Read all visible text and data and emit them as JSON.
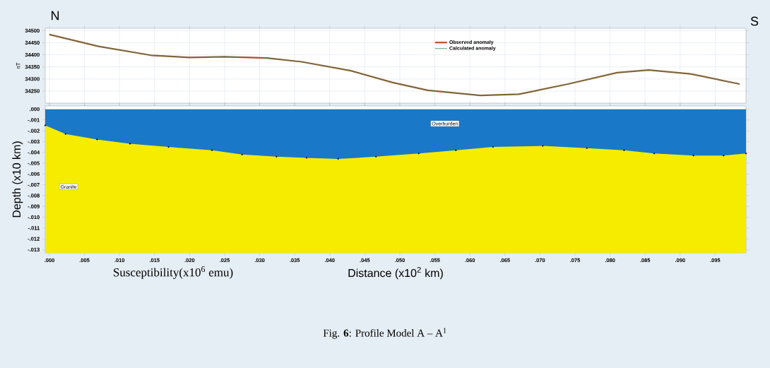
{
  "chart_data": [
    {
      "type": "line",
      "ylabel": "nT",
      "xlim": [
        -0.0006,
        0.0994
      ],
      "ylim": [
        34200,
        34510
      ],
      "xticks": [
        0,
        0.005,
        0.01,
        0.015,
        0.02,
        0.025,
        0.03,
        0.035,
        0.04,
        0.045,
        0.05,
        0.055,
        0.06,
        0.065,
        0.07,
        0.075,
        0.08,
        0.085,
        0.09,
        0.095
      ],
      "yticks": [
        34250,
        34300,
        34350,
        34400,
        34450,
        34500
      ],
      "tick_labels": "y",
      "grid": true,
      "legend": "top",
      "x": [
        0,
        0.007,
        0.0145,
        0.02,
        0.025,
        0.031,
        0.036,
        0.043,
        0.049,
        0.054,
        0.0615,
        0.067,
        0.074,
        0.081,
        0.0855,
        0.0915,
        0.0985
      ],
      "series": [
        {
          "name": "Observed anomaly",
          "color": "#b5502a",
          "values": [
            34484,
            34435,
            34398,
            34389,
            34392,
            34387,
            34371,
            34334,
            34285,
            34253,
            34232,
            34237,
            34279,
            34326,
            34337,
            34321,
            34279
          ]
        },
        {
          "name": "Calculated anomaly",
          "color": "#2e8b57",
          "values": [
            34484,
            34435,
            34398,
            34389,
            34392,
            34387,
            34371,
            34334,
            34285,
            34253,
            34232,
            34237,
            34279,
            34326,
            34337,
            34321,
            34279
          ]
        }
      ],
      "annotations": [
        "N",
        "S"
      ]
    },
    {
      "type": "area",
      "xlabel": "Distance  (x10$^{2}$ km)",
      "ylabel": "Depth (x10 km)",
      "xlim": [
        -0.0006,
        0.0994
      ],
      "ylim": [
        -0.0133,
        0.0003
      ],
      "xticks": [
        {
          "value": 0,
          "label": ".000"
        },
        {
          "value": 0.005,
          "label": ".005"
        },
        {
          "value": 0.01,
          "label": ".010"
        },
        {
          "value": 0.015,
          "label": ".015"
        },
        {
          "value": 0.02,
          "label": ".020"
        },
        {
          "value": 0.025,
          "label": ".025"
        },
        {
          "value": 0.03,
          "label": ".030"
        },
        {
          "value": 0.035,
          "label": ".035"
        },
        {
          "value": 0.04,
          "label": ".040"
        },
        {
          "value": 0.045,
          "label": ".045"
        },
        {
          "value": 0.05,
          "label": ".050"
        },
        {
          "value": 0.055,
          "label": ".055"
        },
        {
          "value": 0.06,
          "label": ".060"
        },
        {
          "value": 0.065,
          "label": ".065"
        },
        {
          "value": 0.07,
          "label": ".070"
        },
        {
          "value": 0.075,
          "label": ".075"
        },
        {
          "value": 0.08,
          "label": ".080"
        },
        {
          "value": 0.085,
          "label": ".085"
        },
        {
          "value": 0.09,
          "label": ".090"
        },
        {
          "value": 0.095,
          "label": ".095"
        }
      ],
      "yticks": [
        {
          "value": 0,
          "label": ".000"
        },
        {
          "value": -0.001,
          "label": "-.001"
        },
        {
          "value": -0.002,
          "label": "-.002"
        },
        {
          "value": -0.003,
          "label": "-.003"
        },
        {
          "value": -0.004,
          "label": "-.004"
        },
        {
          "value": -0.005,
          "label": "-.005"
        },
        {
          "value": -0.006,
          "label": "-.006"
        },
        {
          "value": -0.007,
          "label": "-.007"
        },
        {
          "value": -0.008,
          "label": "-.008"
        },
        {
          "value": -0.009,
          "label": "-.009"
        },
        {
          "value": -0.01,
          "label": "-.010"
        },
        {
          "value": -0.011,
          "label": "-.011"
        },
        {
          "value": -0.012,
          "label": "-.012"
        },
        {
          "value": -0.013,
          "label": "-.013"
        }
      ],
      "legend": false,
      "marker": "circle",
      "x": [
        -0.0006,
        0.0023,
        0.0068,
        0.0115,
        0.017,
        0.0232,
        0.0275,
        0.0324,
        0.0367,
        0.0412,
        0.0466,
        0.0527,
        0.058,
        0.0633,
        0.0704,
        0.0767,
        0.082,
        0.0863,
        0.0919,
        0.0962,
        0.0994
      ],
      "series": [
        {
          "name": "Overburden",
          "color": "#1a78c8",
          "values": [
            -0.0015,
            -0.0023,
            -0.0028,
            -0.0032,
            -0.0035,
            -0.0038,
            -0.0042,
            -0.0044,
            -0.0045,
            -0.0046,
            -0.0044,
            -0.0041,
            -0.0038,
            -0.0035,
            -0.0034,
            -0.0036,
            -0.0038,
            -0.0041,
            -0.0043,
            -0.0043,
            -0.0041
          ]
        }
      ],
      "bands": [
        {
          "axis": "y",
          "from": -0.0133,
          "to": 0,
          "color": "#f5ec00",
          "label": "Granite"
        }
      ],
      "annotations": [
        "Susceptibility(x10$^{6}$ emu)",
        "Fig. **6**: Profile Model A – A$^{1}$"
      ]
    }
  ]
}
